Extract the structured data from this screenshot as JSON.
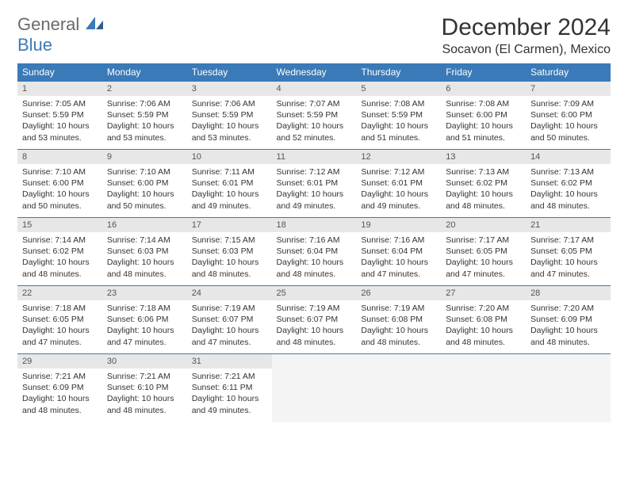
{
  "logo": {
    "text1": "General",
    "text2": "Blue"
  },
  "title": "December 2024",
  "location": "Socavon (El Carmen), Mexico",
  "colors": {
    "header_bg": "#3a7ab8",
    "header_text": "#ffffff",
    "daynum_bg": "#e7e7e7",
    "border": "#3a7ab8",
    "logo_gray": "#6a6a6a",
    "logo_blue": "#3a7ab8"
  },
  "dayNames": [
    "Sunday",
    "Monday",
    "Tuesday",
    "Wednesday",
    "Thursday",
    "Friday",
    "Saturday"
  ],
  "weeks": [
    [
      {
        "n": "1",
        "sr": "7:05 AM",
        "ss": "5:59 PM",
        "dl": "10 hours and 53 minutes."
      },
      {
        "n": "2",
        "sr": "7:06 AM",
        "ss": "5:59 PM",
        "dl": "10 hours and 53 minutes."
      },
      {
        "n": "3",
        "sr": "7:06 AM",
        "ss": "5:59 PM",
        "dl": "10 hours and 53 minutes."
      },
      {
        "n": "4",
        "sr": "7:07 AM",
        "ss": "5:59 PM",
        "dl": "10 hours and 52 minutes."
      },
      {
        "n": "5",
        "sr": "7:08 AM",
        "ss": "5:59 PM",
        "dl": "10 hours and 51 minutes."
      },
      {
        "n": "6",
        "sr": "7:08 AM",
        "ss": "6:00 PM",
        "dl": "10 hours and 51 minutes."
      },
      {
        "n": "7",
        "sr": "7:09 AM",
        "ss": "6:00 PM",
        "dl": "10 hours and 50 minutes."
      }
    ],
    [
      {
        "n": "8",
        "sr": "7:10 AM",
        "ss": "6:00 PM",
        "dl": "10 hours and 50 minutes."
      },
      {
        "n": "9",
        "sr": "7:10 AM",
        "ss": "6:00 PM",
        "dl": "10 hours and 50 minutes."
      },
      {
        "n": "10",
        "sr": "7:11 AM",
        "ss": "6:01 PM",
        "dl": "10 hours and 49 minutes."
      },
      {
        "n": "11",
        "sr": "7:12 AM",
        "ss": "6:01 PM",
        "dl": "10 hours and 49 minutes."
      },
      {
        "n": "12",
        "sr": "7:12 AM",
        "ss": "6:01 PM",
        "dl": "10 hours and 49 minutes."
      },
      {
        "n": "13",
        "sr": "7:13 AM",
        "ss": "6:02 PM",
        "dl": "10 hours and 48 minutes."
      },
      {
        "n": "14",
        "sr": "7:13 AM",
        "ss": "6:02 PM",
        "dl": "10 hours and 48 minutes."
      }
    ],
    [
      {
        "n": "15",
        "sr": "7:14 AM",
        "ss": "6:02 PM",
        "dl": "10 hours and 48 minutes."
      },
      {
        "n": "16",
        "sr": "7:14 AM",
        "ss": "6:03 PM",
        "dl": "10 hours and 48 minutes."
      },
      {
        "n": "17",
        "sr": "7:15 AM",
        "ss": "6:03 PM",
        "dl": "10 hours and 48 minutes."
      },
      {
        "n": "18",
        "sr": "7:16 AM",
        "ss": "6:04 PM",
        "dl": "10 hours and 48 minutes."
      },
      {
        "n": "19",
        "sr": "7:16 AM",
        "ss": "6:04 PM",
        "dl": "10 hours and 47 minutes."
      },
      {
        "n": "20",
        "sr": "7:17 AM",
        "ss": "6:05 PM",
        "dl": "10 hours and 47 minutes."
      },
      {
        "n": "21",
        "sr": "7:17 AM",
        "ss": "6:05 PM",
        "dl": "10 hours and 47 minutes."
      }
    ],
    [
      {
        "n": "22",
        "sr": "7:18 AM",
        "ss": "6:05 PM",
        "dl": "10 hours and 47 minutes."
      },
      {
        "n": "23",
        "sr": "7:18 AM",
        "ss": "6:06 PM",
        "dl": "10 hours and 47 minutes."
      },
      {
        "n": "24",
        "sr": "7:19 AM",
        "ss": "6:07 PM",
        "dl": "10 hours and 47 minutes."
      },
      {
        "n": "25",
        "sr": "7:19 AM",
        "ss": "6:07 PM",
        "dl": "10 hours and 48 minutes."
      },
      {
        "n": "26",
        "sr": "7:19 AM",
        "ss": "6:08 PM",
        "dl": "10 hours and 48 minutes."
      },
      {
        "n": "27",
        "sr": "7:20 AM",
        "ss": "6:08 PM",
        "dl": "10 hours and 48 minutes."
      },
      {
        "n": "28",
        "sr": "7:20 AM",
        "ss": "6:09 PM",
        "dl": "10 hours and 48 minutes."
      }
    ],
    [
      {
        "n": "29",
        "sr": "7:21 AM",
        "ss": "6:09 PM",
        "dl": "10 hours and 48 minutes."
      },
      {
        "n": "30",
        "sr": "7:21 AM",
        "ss": "6:10 PM",
        "dl": "10 hours and 48 minutes."
      },
      {
        "n": "31",
        "sr": "7:21 AM",
        "ss": "6:11 PM",
        "dl": "10 hours and 49 minutes."
      },
      null,
      null,
      null,
      null
    ]
  ],
  "labels": {
    "sunrise": "Sunrise:",
    "sunset": "Sunset:",
    "daylight": "Daylight:"
  }
}
